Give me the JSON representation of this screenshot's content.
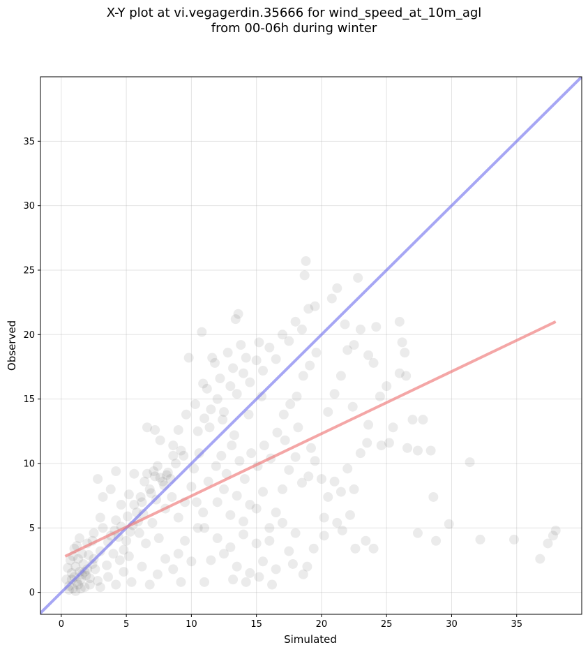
{
  "chart_data": {
    "type": "scatter",
    "title": [
      "X-Y plot at vi.vegagerdin.35666 for wind_speed_at_10m_agl",
      "from 00-06h during winter"
    ],
    "xlabel": "Simulated",
    "ylabel": "Observed",
    "xlim": [
      -1.6,
      40
    ],
    "ylim": [
      -1.7,
      40
    ],
    "xticks": [
      0,
      5,
      10,
      15,
      20,
      25,
      30,
      35
    ],
    "yticks": [
      0,
      5,
      10,
      15,
      20,
      25,
      30,
      35
    ],
    "grid": true,
    "point_color": "#000000",
    "point_alpha": 0.08,
    "one_to_one_line": {
      "color": "#7777ee",
      "x": [
        -1.6,
        40
      ],
      "y": [
        -1.6,
        40
      ]
    },
    "regression_line": {
      "color": "#ee7777",
      "x": [
        0.3,
        38
      ],
      "y": [
        2.8,
        21.0
      ]
    },
    "points": [
      [
        1.0,
        1.2
      ],
      [
        1.2,
        0.8
      ],
      [
        0.8,
        1.5
      ],
      [
        1.5,
        1.0
      ],
      [
        1.1,
        2.0
      ],
      [
        0.6,
        0.5
      ],
      [
        1.4,
        1.6
      ],
      [
        0.9,
        0.3
      ],
      [
        1.7,
        2.2
      ],
      [
        1.3,
        0.6
      ],
      [
        2.0,
        1.8
      ],
      [
        0.7,
        2.5
      ],
      [
        1.8,
        0.4
      ],
      [
        2.2,
        1.1
      ],
      [
        1.6,
        3.0
      ],
      [
        0.5,
        1.9
      ],
      [
        2.5,
        2.6
      ],
      [
        1.9,
        1.3
      ],
      [
        1.0,
        3.4
      ],
      [
        2.8,
        0.9
      ],
      [
        3.0,
        3.2
      ],
      [
        2.4,
        4.0
      ],
      [
        3.5,
        2.1
      ],
      [
        3.2,
        5.0
      ],
      [
        4.0,
        3.0
      ],
      [
        3.8,
        4.4
      ],
      [
        4.5,
        2.5
      ],
      [
        4.2,
        5.6
      ],
      [
        5.0,
        4.0
      ],
      [
        4.8,
        3.3
      ],
      [
        5.5,
        5.2
      ],
      [
        5.2,
        2.8
      ],
      [
        6.0,
        4.6
      ],
      [
        5.8,
        6.2
      ],
      [
        6.5,
        3.8
      ],
      [
        6.2,
        7.0
      ],
      [
        7.0,
        5.4
      ],
      [
        6.8,
        8.0
      ],
      [
        7.5,
        4.2
      ],
      [
        7.2,
        9.0
      ],
      [
        8.0,
        6.5
      ],
      [
        7.8,
        8.6
      ],
      [
        8.5,
        7.4
      ],
      [
        8.2,
        9.3
      ],
      [
        9.0,
        5.8
      ],
      [
        8.8,
        10.0
      ],
      [
        9.5,
        7.0
      ],
      [
        9.2,
        11.0
      ],
      [
        10.0,
        8.2
      ],
      [
        10.5,
        12.5
      ],
      [
        6.4,
        8.6
      ],
      [
        7.1,
        9.4
      ],
      [
        7.6,
        8.9
      ],
      [
        8.1,
        9.1
      ],
      [
        6.9,
        7.7
      ],
      [
        7.4,
        9.8
      ],
      [
        7.9,
        8.3
      ],
      [
        8.4,
        8.8
      ],
      [
        6.6,
        9.2
      ],
      [
        7.3,
        7.2
      ],
      [
        5.6,
        6.8
      ],
      [
        6.1,
        7.4
      ],
      [
        5.1,
        5.9
      ],
      [
        4.6,
        5.1
      ],
      [
        4.1,
        4.8
      ],
      [
        3.6,
        3.9
      ],
      [
        5.9,
        5.5
      ],
      [
        6.3,
        6.1
      ],
      [
        5.3,
        4.7
      ],
      [
        4.4,
        4.3
      ],
      [
        11.0,
        13.5
      ],
      [
        11.5,
        14.2
      ],
      [
        12.0,
        15.0
      ],
      [
        12.5,
        14.0
      ],
      [
        13.0,
        16.0
      ],
      [
        13.5,
        15.4
      ],
      [
        14.0,
        17.0
      ],
      [
        14.5,
        16.3
      ],
      [
        15.0,
        18.0
      ],
      [
        15.5,
        17.2
      ],
      [
        16.0,
        19.0
      ],
      [
        16.5,
        18.1
      ],
      [
        17.0,
        20.0
      ],
      [
        17.5,
        19.5
      ],
      [
        18.0,
        21.0
      ],
      [
        18.5,
        20.4
      ],
      [
        19.0,
        22.0
      ],
      [
        18.8,
        25.7
      ],
      [
        18.7,
        24.6
      ],
      [
        19.5,
        22.2
      ],
      [
        11.2,
        15.8
      ],
      [
        12.2,
        16.6
      ],
      [
        13.2,
        17.4
      ],
      [
        14.2,
        18.2
      ],
      [
        15.2,
        19.4
      ],
      [
        11.8,
        17.8
      ],
      [
        12.8,
        18.6
      ],
      [
        13.8,
        19.2
      ],
      [
        13.6,
        21.6
      ],
      [
        13.4,
        21.2
      ],
      [
        10.8,
        20.2
      ],
      [
        11.6,
        18.2
      ],
      [
        9.8,
        18.2
      ],
      [
        10.3,
        14.6
      ],
      [
        10.9,
        16.2
      ],
      [
        11.4,
        12.8
      ],
      [
        12.4,
        13.4
      ],
      [
        13.3,
        12.2
      ],
      [
        14.4,
        13.8
      ],
      [
        15.4,
        15.2
      ],
      [
        12.0,
        7.0
      ],
      [
        13.0,
        6.0
      ],
      [
        14.0,
        5.5
      ],
      [
        15.0,
        6.5
      ],
      [
        16.0,
        5.0
      ],
      [
        12.5,
        8.0
      ],
      [
        13.5,
        7.5
      ],
      [
        14.5,
        6.8
      ],
      [
        15.5,
        7.8
      ],
      [
        16.5,
        6.2
      ],
      [
        11.0,
        5.0
      ],
      [
        12.0,
        4.2
      ],
      [
        13.0,
        3.5
      ],
      [
        14.0,
        4.5
      ],
      [
        15.0,
        3.8
      ],
      [
        16.0,
        4.0
      ],
      [
        17.0,
        5.4
      ],
      [
        18.0,
        4.6
      ],
      [
        11.5,
        2.5
      ],
      [
        12.5,
        3.0
      ],
      [
        13.5,
        2.0
      ],
      [
        14.5,
        1.5
      ],
      [
        15.5,
        2.4
      ],
      [
        16.5,
        1.8
      ],
      [
        17.5,
        3.2
      ],
      [
        13.2,
        1.0
      ],
      [
        14.2,
        0.8
      ],
      [
        15.2,
        1.2
      ],
      [
        16.2,
        0.6
      ],
      [
        11.0,
        0.8
      ],
      [
        17.0,
        8.0
      ],
      [
        17.5,
        9.5
      ],
      [
        18.0,
        10.5
      ],
      [
        18.5,
        8.5
      ],
      [
        19.0,
        9.0
      ],
      [
        19.5,
        10.2
      ],
      [
        20.0,
        8.8
      ],
      [
        17.2,
        11.8
      ],
      [
        18.2,
        12.8
      ],
      [
        19.2,
        11.2
      ],
      [
        20.5,
        7.4
      ],
      [
        21.0,
        8.6
      ],
      [
        21.5,
        7.8
      ],
      [
        22.0,
        9.6
      ],
      [
        22.5,
        8.0
      ],
      [
        20.2,
        5.8
      ],
      [
        21.2,
        5.4
      ],
      [
        22.2,
        6.0
      ],
      [
        23.0,
        10.8
      ],
      [
        23.5,
        11.6
      ],
      [
        20.5,
        14.0
      ],
      [
        21.0,
        15.4
      ],
      [
        21.5,
        16.8
      ],
      [
        22.0,
        18.8
      ],
      [
        22.5,
        19.2
      ],
      [
        23.0,
        20.4
      ],
      [
        21.2,
        23.6
      ],
      [
        20.8,
        22.8
      ],
      [
        22.8,
        24.4
      ],
      [
        21.8,
        20.8
      ],
      [
        24.0,
        17.8
      ],
      [
        24.5,
        15.2
      ],
      [
        25.0,
        16.0
      ],
      [
        25.5,
        12.8
      ],
      [
        26.0,
        17.0
      ],
      [
        26.5,
        16.8
      ],
      [
        26.0,
        21.0
      ],
      [
        26.2,
        19.4
      ],
      [
        26.4,
        18.6
      ],
      [
        27.0,
        13.4
      ],
      [
        24.2,
        20.6
      ],
      [
        23.6,
        18.4
      ],
      [
        22.4,
        14.4
      ],
      [
        23.6,
        13.0
      ],
      [
        24.6,
        11.4
      ],
      [
        25.2,
        11.6
      ],
      [
        26.6,
        11.2
      ],
      [
        27.4,
        11.0
      ],
      [
        27.8,
        13.4
      ],
      [
        28.4,
        11.0
      ],
      [
        23.4,
        4.0
      ],
      [
        24.0,
        3.4
      ],
      [
        27.4,
        4.6
      ],
      [
        28.6,
        7.4
      ],
      [
        28.8,
        4.0
      ],
      [
        29.8,
        5.3
      ],
      [
        31.4,
        10.1
      ],
      [
        32.2,
        4.1
      ],
      [
        34.8,
        4.1
      ],
      [
        36.8,
        2.6
      ],
      [
        37.4,
        3.8
      ],
      [
        37.8,
        4.4
      ],
      [
        38.0,
        4.8
      ],
      [
        22.6,
        3.4
      ],
      [
        21.6,
        4.8
      ],
      [
        19.4,
        3.4
      ],
      [
        18.6,
        1.4
      ],
      [
        17.8,
        2.2
      ],
      [
        18.9,
        2.0
      ],
      [
        20.2,
        4.4
      ],
      [
        2.0,
        3.8
      ],
      [
        2.5,
        4.6
      ],
      [
        3.0,
        5.8
      ],
      [
        2.8,
        8.8
      ],
      [
        3.2,
        7.4
      ],
      [
        3.8,
        8.0
      ],
      [
        4.2,
        9.4
      ],
      [
        4.6,
        6.8
      ],
      [
        5.2,
        7.6
      ],
      [
        5.6,
        9.2
      ],
      [
        6.6,
        12.8
      ],
      [
        7.2,
        12.6
      ],
      [
        7.6,
        11.8
      ],
      [
        8.6,
        11.4
      ],
      [
        9.0,
        12.6
      ],
      [
        9.6,
        13.8
      ],
      [
        9.4,
        10.6
      ],
      [
        8.6,
        10.6
      ],
      [
        10.2,
        9.6
      ],
      [
        10.6,
        10.8
      ],
      [
        9.0,
        3.0
      ],
      [
        9.5,
        4.0
      ],
      [
        10.0,
        2.4
      ],
      [
        10.5,
        5.0
      ],
      [
        8.6,
        1.8
      ],
      [
        9.2,
        0.8
      ],
      [
        8.0,
        2.6
      ],
      [
        7.4,
        1.4
      ],
      [
        6.8,
        0.6
      ],
      [
        6.2,
        2.0
      ],
      [
        5.4,
        0.8
      ],
      [
        4.8,
        1.6
      ],
      [
        4.2,
        0.6
      ],
      [
        3.6,
        1.2
      ],
      [
        3.0,
        0.4
      ],
      [
        2.6,
        1.8
      ],
      [
        2.2,
        0.6
      ],
      [
        1.4,
        4.2
      ],
      [
        1.2,
        3.6
      ],
      [
        0.9,
        2.8
      ],
      [
        0.4,
        1.0
      ],
      [
        0.6,
        0.2
      ],
      [
        1.8,
        1.6
      ],
      [
        2.1,
        2.9
      ],
      [
        2.4,
        2.2
      ],
      [
        1.5,
        0.3
      ],
      [
        0.8,
        1.0
      ],
      [
        1.3,
        2.6
      ],
      [
        1.6,
        1.4
      ],
      [
        1.1,
        0.1
      ],
      [
        10.4,
        7.0
      ],
      [
        10.9,
        6.2
      ],
      [
        11.3,
        8.6
      ],
      [
        11.9,
        9.8
      ],
      [
        12.3,
        10.6
      ],
      [
        12.7,
        9.2
      ],
      [
        13.1,
        11.4
      ],
      [
        13.7,
        10.2
      ],
      [
        14.1,
        8.8
      ],
      [
        14.6,
        10.8
      ],
      [
        15.1,
        9.8
      ],
      [
        15.6,
        11.4
      ],
      [
        16.1,
        10.4
      ],
      [
        16.6,
        12.4
      ],
      [
        17.1,
        13.8
      ],
      [
        17.6,
        14.6
      ],
      [
        18.1,
        15.2
      ],
      [
        18.6,
        16.8
      ],
      [
        19.1,
        17.6
      ],
      [
        19.6,
        18.6
      ]
    ]
  }
}
